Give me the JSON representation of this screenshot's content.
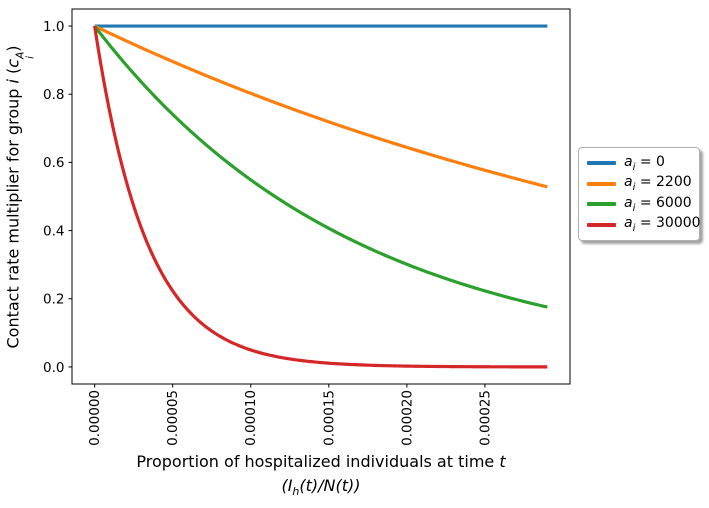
{
  "figure": {
    "background": "#ffffff",
    "axes_color": "#000000"
  },
  "chart_data": {
    "type": "line",
    "title": "",
    "grid": false,
    "model": "c_i(x) = exp(-a_i * x)",
    "xlabel": {
      "line1_text": "Proportion of hospitalized individuals at time ",
      "line1_var": "t",
      "line2_open": "(",
      "line2_symbol": "I",
      "line2_subscript": "h",
      "line2_rest": "(t)/N(t))",
      "full": "Proportion of hospitalized individuals at time t (I_h(t)/N(t))"
    },
    "ylabel": {
      "prefix": "Contact rate multiplier for group ",
      "group_var": "i",
      "open_paren": " (",
      "symbol": "c",
      "superscript": "A",
      "subscript": "i",
      "close_paren": ")",
      "full": "Contact rate multiplier for group i (c_i^A)"
    },
    "xlim": [
      -1.45e-05,
      0.0003045
    ],
    "ylim": [
      -0.05,
      1.05
    ],
    "x_data_range": [
      0,
      0.00029
    ],
    "x_ticks": {
      "values": [
        0,
        5e-05,
        0.0001,
        0.00015,
        0.0002,
        0.00025
      ],
      "labels": [
        "0.00000",
        "0.00005",
        "0.00010",
        "0.00015",
        "0.00020",
        "0.00025"
      ],
      "rotation_deg": 90
    },
    "y_ticks": {
      "values": [
        0.0,
        0.2,
        0.4,
        0.6,
        0.8,
        1.0
      ],
      "labels": [
        "0.0",
        "0.2",
        "0.4",
        "0.6",
        "0.8",
        "1.0"
      ]
    },
    "legend_position": "center-right outside axes, with shadow",
    "series": [
      {
        "label": "aᵢ = 0",
        "label_var": "a",
        "label_sub": "i",
        "label_eq": " = 0",
        "a": 0,
        "color": "#1f77b4",
        "y_at_x_ticks": [
          1.0,
          1.0,
          1.0,
          1.0,
          1.0,
          1.0
        ],
        "x_end": 0.00029,
        "y_end": 1.0
      },
      {
        "label": "aᵢ = 2200",
        "label_var": "a",
        "label_sub": "i",
        "label_eq": " = 2200",
        "a": 2200,
        "color": "#ff7f0e",
        "y_at_x_ticks": [
          1.0,
          0.8958,
          0.8025,
          0.7189,
          0.644,
          0.5769
        ],
        "x_end": 0.00029,
        "y_end": 0.5281
      },
      {
        "label": "aᵢ = 6000",
        "label_var": "a",
        "label_sub": "i",
        "label_eq": " = 6000",
        "a": 6000,
        "color": "#2ca02c",
        "y_at_x_ticks": [
          1.0,
          0.7408,
          0.5488,
          0.4066,
          0.3012,
          0.2231
        ],
        "x_end": 0.00029,
        "y_end": 0.1755
      },
      {
        "label": "aᵢ = 30000",
        "label_var": "a",
        "label_sub": "i",
        "label_eq": " = 30000",
        "a": 30000,
        "color": "#d62728",
        "y_at_x_ticks": [
          1.0,
          0.2231,
          0.0498,
          0.0111,
          0.0025,
          0.0006
        ],
        "x_end": 0.00029,
        "y_end": 0.0002
      }
    ]
  }
}
